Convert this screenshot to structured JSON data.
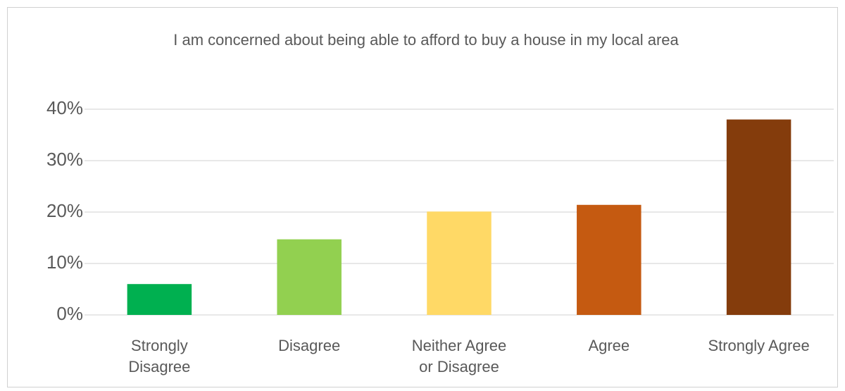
{
  "chart_data": {
    "type": "bar",
    "title": "I am concerned about being able to afford to buy a house in my local area",
    "categories": [
      "Strongly Disagree",
      "Disagree",
      "Neither Agree or Disagree",
      "Agree",
      "Strongly Agree"
    ],
    "values": [
      6,
      14.7,
      20.1,
      21.4,
      38
    ],
    "colors": [
      "#00b050",
      "#92d050",
      "#ffd966",
      "#c55a11",
      "#843c0c"
    ],
    "ylim": [
      0,
      40
    ],
    "yticks": [
      {
        "value": 0,
        "label": "0%"
      },
      {
        "value": 10,
        "label": "10%"
      },
      {
        "value": 20,
        "label": "20%"
      },
      {
        "value": 30,
        "label": "30%"
      },
      {
        "value": 40,
        "label": "40%"
      }
    ],
    "grid": true
  }
}
